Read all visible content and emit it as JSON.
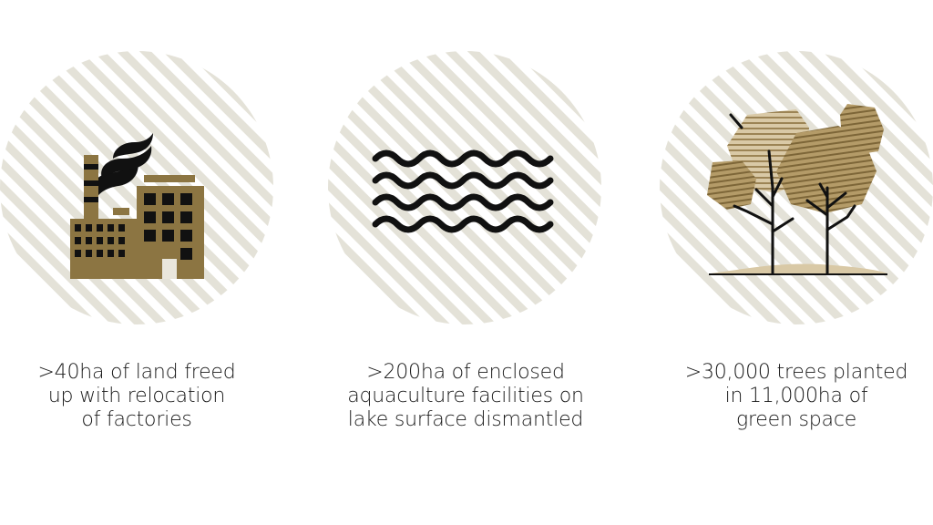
{
  "colors": {
    "stripe": "#e4e2d8",
    "gold": "#8c7542",
    "tan": "#c9b48a",
    "ink": "#111111"
  },
  "stats": [
    {
      "icon": "factory-icon",
      "lines": [
        ">40ha of land freed",
        "up with relocation",
        "of factories"
      ]
    },
    {
      "icon": "waves-icon",
      "lines": [
        ">200ha of enclosed",
        "aquaculture facilities on",
        "lake surface dismantled"
      ]
    },
    {
      "icon": "trees-icon",
      "lines": [
        ">30,000 trees planted",
        "in 11,000ha of",
        "green space"
      ]
    }
  ]
}
